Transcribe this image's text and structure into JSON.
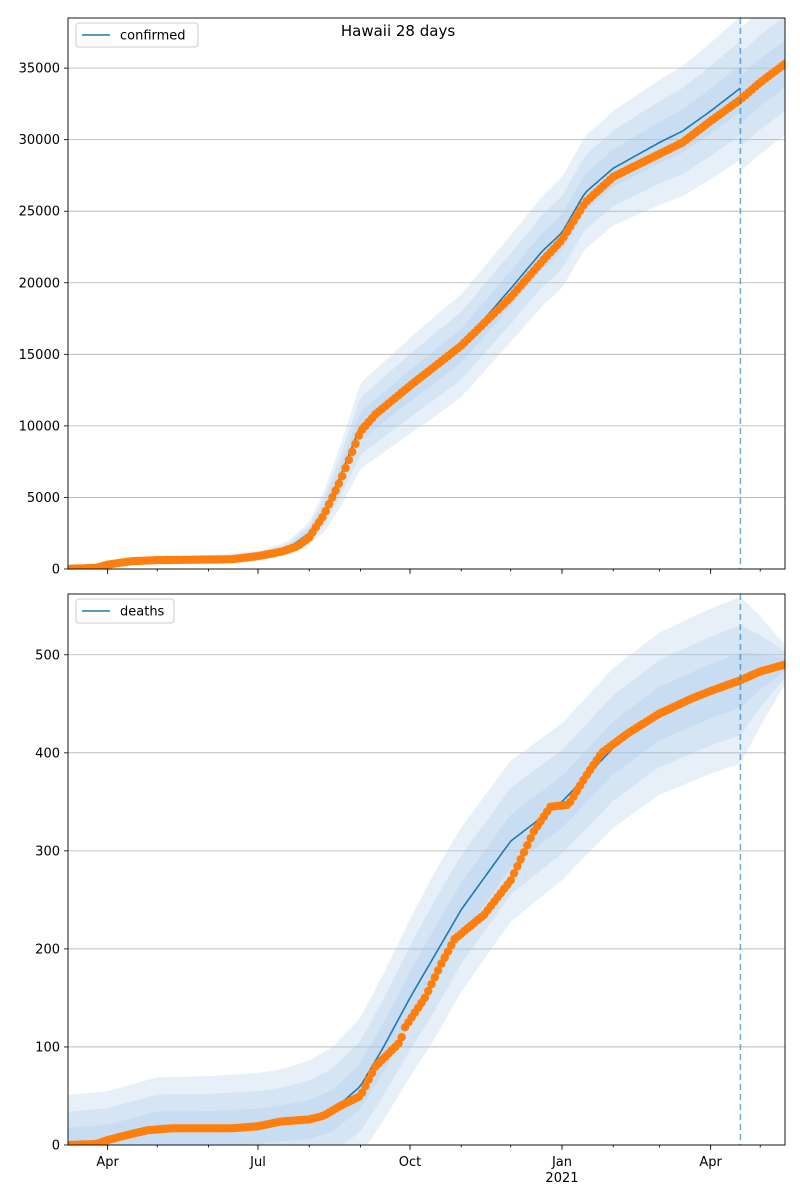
{
  "title": "Hawaii 28 days",
  "colors": {
    "model": "#1f77b4",
    "observed": "#ff7f0e",
    "band": "#a9c8e8",
    "grid": "#b0b0b0"
  },
  "chart_data": [
    {
      "type": "line",
      "series_name": "confirmed",
      "legend": "top-left",
      "grid": "horizontal",
      "xlim": [
        "2020-03-08",
        "2021-05-16"
      ],
      "ylim": [
        0,
        38500
      ],
      "x_ticks": [
        {
          "date": "2020-04-01",
          "label": "Apr"
        },
        {
          "date": "2020-07-01",
          "label": "Jul"
        },
        {
          "date": "2020-10-01",
          "label": "Oct"
        },
        {
          "date": "2021-01-01",
          "label": "Jan"
        },
        {
          "date": "2021-04-01",
          "label": "Apr"
        }
      ],
      "y_ticks": [
        0,
        5000,
        10000,
        15000,
        20000,
        25000,
        30000,
        35000
      ],
      "forecast_start": "2021-04-19",
      "model": [
        [
          "2020-03-08",
          50
        ],
        [
          "2020-04-01",
          300
        ],
        [
          "2020-05-01",
          620
        ],
        [
          "2020-06-01",
          660
        ],
        [
          "2020-07-01",
          900
        ],
        [
          "2020-07-20",
          1500
        ],
        [
          "2020-08-01",
          2500
        ],
        [
          "2020-08-10",
          4000
        ],
        [
          "2020-08-20",
          6500
        ],
        [
          "2020-09-01",
          10000
        ],
        [
          "2020-09-15",
          11300
        ],
        [
          "2020-10-01",
          12800
        ],
        [
          "2020-11-01",
          15600
        ],
        [
          "2020-12-01",
          19600
        ],
        [
          "2020-12-20",
          22200
        ],
        [
          "2021-01-01",
          23500
        ],
        [
          "2021-01-15",
          26300
        ],
        [
          "2021-02-01",
          28000
        ],
        [
          "2021-03-01",
          29800
        ],
        [
          "2021-03-15",
          30600
        ],
        [
          "2021-04-01",
          32000
        ],
        [
          "2021-04-19",
          33600
        ]
      ],
      "band_spread": [
        [
          "2020-03-08",
          100
        ],
        [
          "2020-07-15",
          400
        ],
        [
          "2020-08-01",
          800
        ],
        [
          "2020-09-01",
          3000
        ],
        [
          "2020-10-15",
          3500
        ],
        [
          "2020-12-15",
          3800
        ],
        [
          "2021-02-01",
          4000
        ],
        [
          "2021-04-19",
          5000
        ],
        [
          "2021-05-16",
          5000
        ]
      ],
      "observed": [
        [
          "2020-03-08",
          10
        ],
        [
          "2020-03-25",
          80
        ],
        [
          "2020-04-01",
          300
        ],
        [
          "2020-04-15",
          540
        ],
        [
          "2020-05-01",
          620
        ],
        [
          "2020-06-01",
          660
        ],
        [
          "2020-06-15",
          680
        ],
        [
          "2020-07-01",
          900
        ],
        [
          "2020-07-15",
          1200
        ],
        [
          "2020-07-25",
          1600
        ],
        [
          "2020-08-01",
          2200
        ],
        [
          "2020-08-10",
          3800
        ],
        [
          "2020-08-20",
          6200
        ],
        [
          "2020-09-01",
          9600
        ],
        [
          "2020-09-10",
          10800
        ],
        [
          "2020-10-01",
          12800
        ],
        [
          "2020-11-01",
          15600
        ],
        [
          "2020-12-01",
          19000
        ],
        [
          "2020-12-20",
          21500
        ],
        [
          "2021-01-01",
          23000
        ],
        [
          "2021-01-15",
          25600
        ],
        [
          "2021-02-01",
          27400
        ],
        [
          "2021-03-01",
          29000
        ],
        [
          "2021-03-15",
          29800
        ],
        [
          "2021-04-01",
          31300
        ],
        [
          "2021-04-19",
          32800
        ],
        [
          "2021-05-01",
          34000
        ],
        [
          "2021-05-16",
          35300
        ]
      ]
    },
    {
      "type": "line",
      "series_name": "deaths",
      "legend": "top-left",
      "grid": "horizontal",
      "xlim": [
        "2020-03-08",
        "2021-05-16"
      ],
      "ylim": [
        0,
        562
      ],
      "x_ticks": [
        {
          "date": "2020-04-01",
          "label": "Apr"
        },
        {
          "date": "2020-07-01",
          "label": "Jul"
        },
        {
          "date": "2020-10-01",
          "label": "Oct"
        },
        {
          "date": "2021-01-01",
          "label": "Jan",
          "sublabel": "2021"
        },
        {
          "date": "2021-04-01",
          "label": "Apr"
        }
      ],
      "y_ticks": [
        0,
        100,
        200,
        300,
        400,
        500
      ],
      "forecast_start": "2021-04-19",
      "model": [
        [
          "2020-03-08",
          1
        ],
        [
          "2020-04-01",
          4
        ],
        [
          "2020-05-01",
          17
        ],
        [
          "2020-06-01",
          17
        ],
        [
          "2020-07-01",
          19
        ],
        [
          "2020-08-01",
          26
        ],
        [
          "2020-08-15",
          35
        ],
        [
          "2020-09-01",
          60
        ],
        [
          "2020-09-15",
          100
        ],
        [
          "2020-10-01",
          150
        ],
        [
          "2020-11-01",
          240
        ],
        [
          "2020-12-01",
          310
        ],
        [
          "2021-01-01",
          350
        ],
        [
          "2021-02-01",
          405
        ],
        [
          "2021-03-01",
          440
        ],
        [
          "2021-04-01",
          463
        ],
        [
          "2021-04-19",
          474
        ]
      ],
      "band_spread": [
        [
          "2020-03-08",
          50
        ],
        [
          "2020-07-15",
          55
        ],
        [
          "2020-09-01",
          70
        ],
        [
          "2020-10-15",
          85
        ],
        [
          "2021-01-01",
          80
        ],
        [
          "2021-04-19",
          85
        ],
        [
          "2021-05-16",
          20
        ]
      ],
      "observed": [
        [
          "2020-03-08",
          0
        ],
        [
          "2020-03-25",
          1
        ],
        [
          "2020-04-01",
          5
        ],
        [
          "2020-04-10",
          9
        ],
        [
          "2020-04-25",
          15
        ],
        [
          "2020-05-10",
          17
        ],
        [
          "2020-06-15",
          17
        ],
        [
          "2020-07-01",
          19
        ],
        [
          "2020-07-15",
          24
        ],
        [
          "2020-08-01",
          26
        ],
        [
          "2020-08-10",
          30
        ],
        [
          "2020-08-20",
          40
        ],
        [
          "2020-09-01",
          50
        ],
        [
          "2020-09-10",
          80
        ],
        [
          "2020-09-25",
          105
        ],
        [
          "2020-09-28",
          120
        ],
        [
          "2020-10-10",
          150
        ],
        [
          "2020-10-20",
          185
        ],
        [
          "2020-10-28",
          210
        ],
        [
          "2020-11-15",
          235
        ],
        [
          "2020-12-01",
          270
        ],
        [
          "2020-12-15",
          320
        ],
        [
          "2020-12-25",
          345
        ],
        [
          "2021-01-05",
          347
        ],
        [
          "2021-01-15",
          375
        ],
        [
          "2021-01-25",
          400
        ],
        [
          "2021-02-10",
          420
        ],
        [
          "2021-03-01",
          440
        ],
        [
          "2021-03-20",
          455
        ],
        [
          "2021-04-01",
          463
        ],
        [
          "2021-04-19",
          474
        ],
        [
          "2021-05-01",
          483
        ],
        [
          "2021-05-16",
          490
        ]
      ]
    }
  ]
}
